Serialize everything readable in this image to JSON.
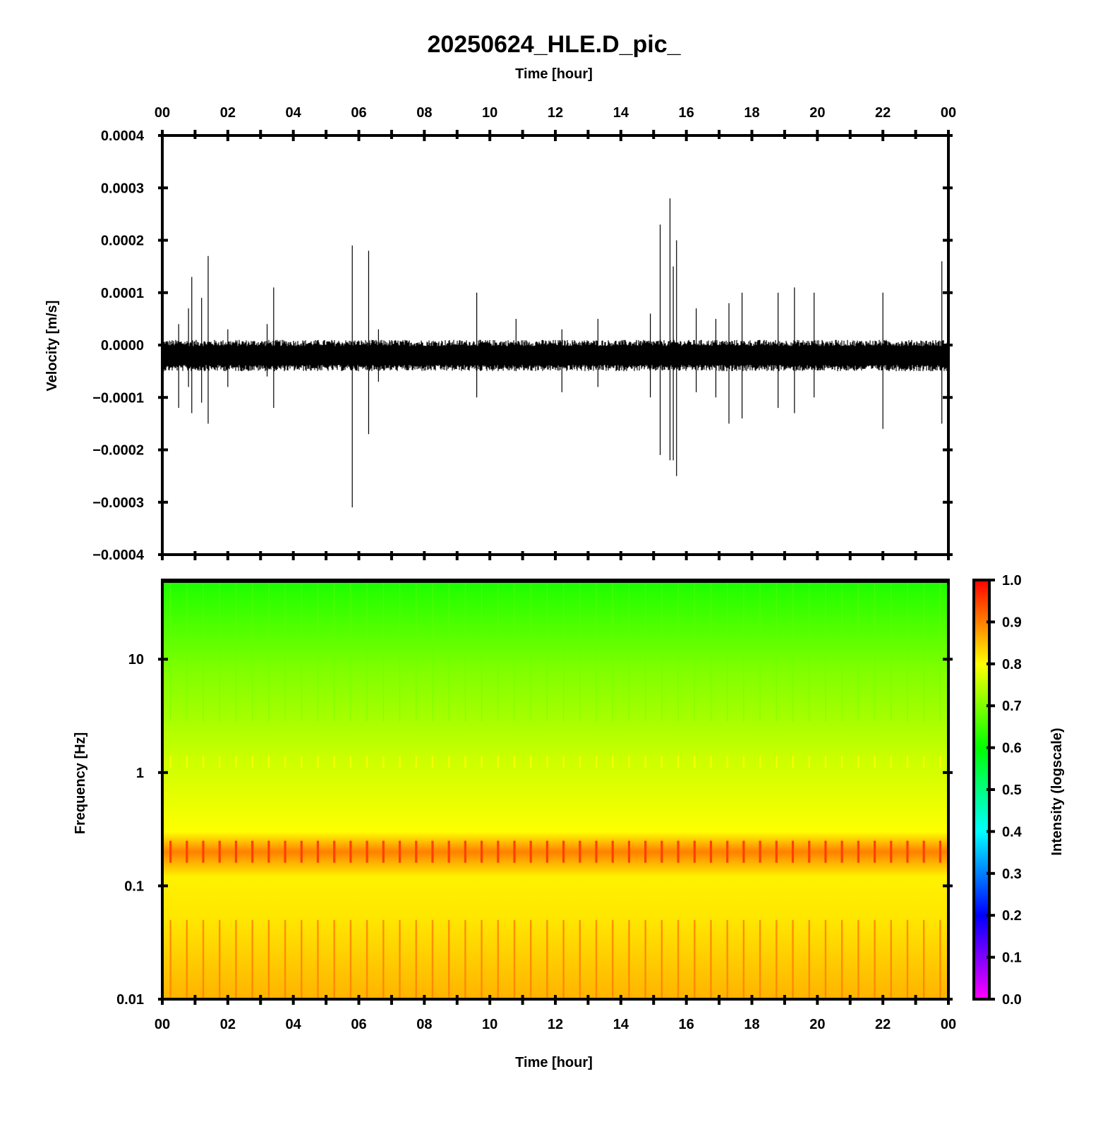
{
  "title": "20250624_HLE.D_pic_",
  "chart_data": [
    {
      "type": "line",
      "panel": "waveform",
      "xlabel_top": "Time [hour]",
      "ylabel": "Velocity [m/s]",
      "x_ticks": [
        "00",
        "02",
        "04",
        "06",
        "08",
        "10",
        "12",
        "14",
        "16",
        "18",
        "20",
        "22",
        "00"
      ],
      "xlim_hours": [
        0,
        24
      ],
      "ylim": [
        -0.0004,
        0.0004
      ],
      "y_ticks": [
        "0.0004",
        "0.0003",
        "0.0002",
        "0.0001",
        "0.0000",
        "−0.0001",
        "−0.0002",
        "−0.0003",
        "−0.0004"
      ],
      "y_tick_values": [
        0.0004,
        0.0003,
        0.0002,
        0.0001,
        0.0,
        -0.0001,
        -0.0002,
        -0.0003,
        -0.0004
      ],
      "baseline_offset": -2e-05,
      "noise_band": 2e-05,
      "spikes": [
        {
          "t": 0.5,
          "up": 4e-05,
          "dn": -0.00012
        },
        {
          "t": 0.8,
          "up": 7e-05,
          "dn": -8e-05
        },
        {
          "t": 0.9,
          "up": 0.00013,
          "dn": -0.00013
        },
        {
          "t": 1.2,
          "up": 9e-05,
          "dn": -0.00011
        },
        {
          "t": 1.4,
          "up": 0.00017,
          "dn": -0.00015
        },
        {
          "t": 2.0,
          "up": 3e-05,
          "dn": -8e-05
        },
        {
          "t": 3.2,
          "up": 4e-05,
          "dn": -6e-05
        },
        {
          "t": 3.4,
          "up": 0.00011,
          "dn": -0.00012
        },
        {
          "t": 5.8,
          "up": 0.00019,
          "dn": -0.00031
        },
        {
          "t": 6.3,
          "up": 0.00018,
          "dn": -0.00017
        },
        {
          "t": 6.6,
          "up": 3e-05,
          "dn": -7e-05
        },
        {
          "t": 9.6,
          "up": 0.0001,
          "dn": -0.0001
        },
        {
          "t": 10.8,
          "up": 5e-05,
          "dn": -5e-05
        },
        {
          "t": 12.2,
          "up": 3e-05,
          "dn": -9e-05
        },
        {
          "t": 13.3,
          "up": 5e-05,
          "dn": -8e-05
        },
        {
          "t": 14.9,
          "up": 6e-05,
          "dn": -0.0001
        },
        {
          "t": 15.2,
          "up": 0.00023,
          "dn": -0.00021
        },
        {
          "t": 15.5,
          "up": 0.00028,
          "dn": -0.00022
        },
        {
          "t": 15.6,
          "up": 0.00015,
          "dn": -0.00022
        },
        {
          "t": 15.7,
          "up": 0.0002,
          "dn": -0.00025
        },
        {
          "t": 16.3,
          "up": 7e-05,
          "dn": -9e-05
        },
        {
          "t": 16.9,
          "up": 5e-05,
          "dn": -0.0001
        },
        {
          "t": 17.3,
          "up": 8e-05,
          "dn": -0.00015
        },
        {
          "t": 17.7,
          "up": 0.0001,
          "dn": -0.00014
        },
        {
          "t": 18.8,
          "up": 0.0001,
          "dn": -0.00012
        },
        {
          "t": 19.3,
          "up": 0.00011,
          "dn": -0.00013
        },
        {
          "t": 19.9,
          "up": 0.0001,
          "dn": -0.0001
        },
        {
          "t": 22.0,
          "up": 0.0001,
          "dn": -0.00016
        },
        {
          "t": 23.8,
          "up": 0.00016,
          "dn": -0.00015
        }
      ]
    },
    {
      "type": "heatmap",
      "panel": "spectrogram",
      "xlabel": "Time [hour]",
      "ylabel": "Frequency [Hz]",
      "x_ticks": [
        "00",
        "02",
        "04",
        "06",
        "08",
        "10",
        "12",
        "14",
        "16",
        "18",
        "20",
        "22",
        "00"
      ],
      "xlim_hours": [
        0,
        24
      ],
      "y_scale": "log",
      "ylim_hz": [
        0.01,
        50
      ],
      "y_ticks": [
        "10",
        "1",
        "0.1",
        "0.01"
      ],
      "y_tick_values": [
        10,
        1,
        0.1,
        0.01
      ],
      "intensity_profile": [
        {
          "f": 50,
          "v": 0.62
        },
        {
          "f": 20,
          "v": 0.66
        },
        {
          "f": 8,
          "v": 0.7
        },
        {
          "f": 3,
          "v": 0.73
        },
        {
          "f": 1.3,
          "v": 0.76
        },
        {
          "f": 0.6,
          "v": 0.78
        },
        {
          "f": 0.3,
          "v": 0.8
        },
        {
          "f": 0.2,
          "v": 0.9
        },
        {
          "f": 0.12,
          "v": 0.81
        },
        {
          "f": 0.05,
          "v": 0.82
        },
        {
          "f": 0.01,
          "v": 0.86
        }
      ],
      "columns_per_hour": 2,
      "colorbar": {
        "label": "Intensity (logscale)",
        "range": [
          0.0,
          1.0
        ],
        "ticks": [
          "1.0",
          "0.9",
          "0.8",
          "0.7",
          "0.6",
          "0.5",
          "0.4",
          "0.3",
          "0.2",
          "0.1",
          "0.0"
        ],
        "stops": [
          "#ff00ff",
          "#0000ff",
          "#00ffff",
          "#00ff00",
          "#ffff00",
          "#ff0000"
        ]
      }
    }
  ]
}
